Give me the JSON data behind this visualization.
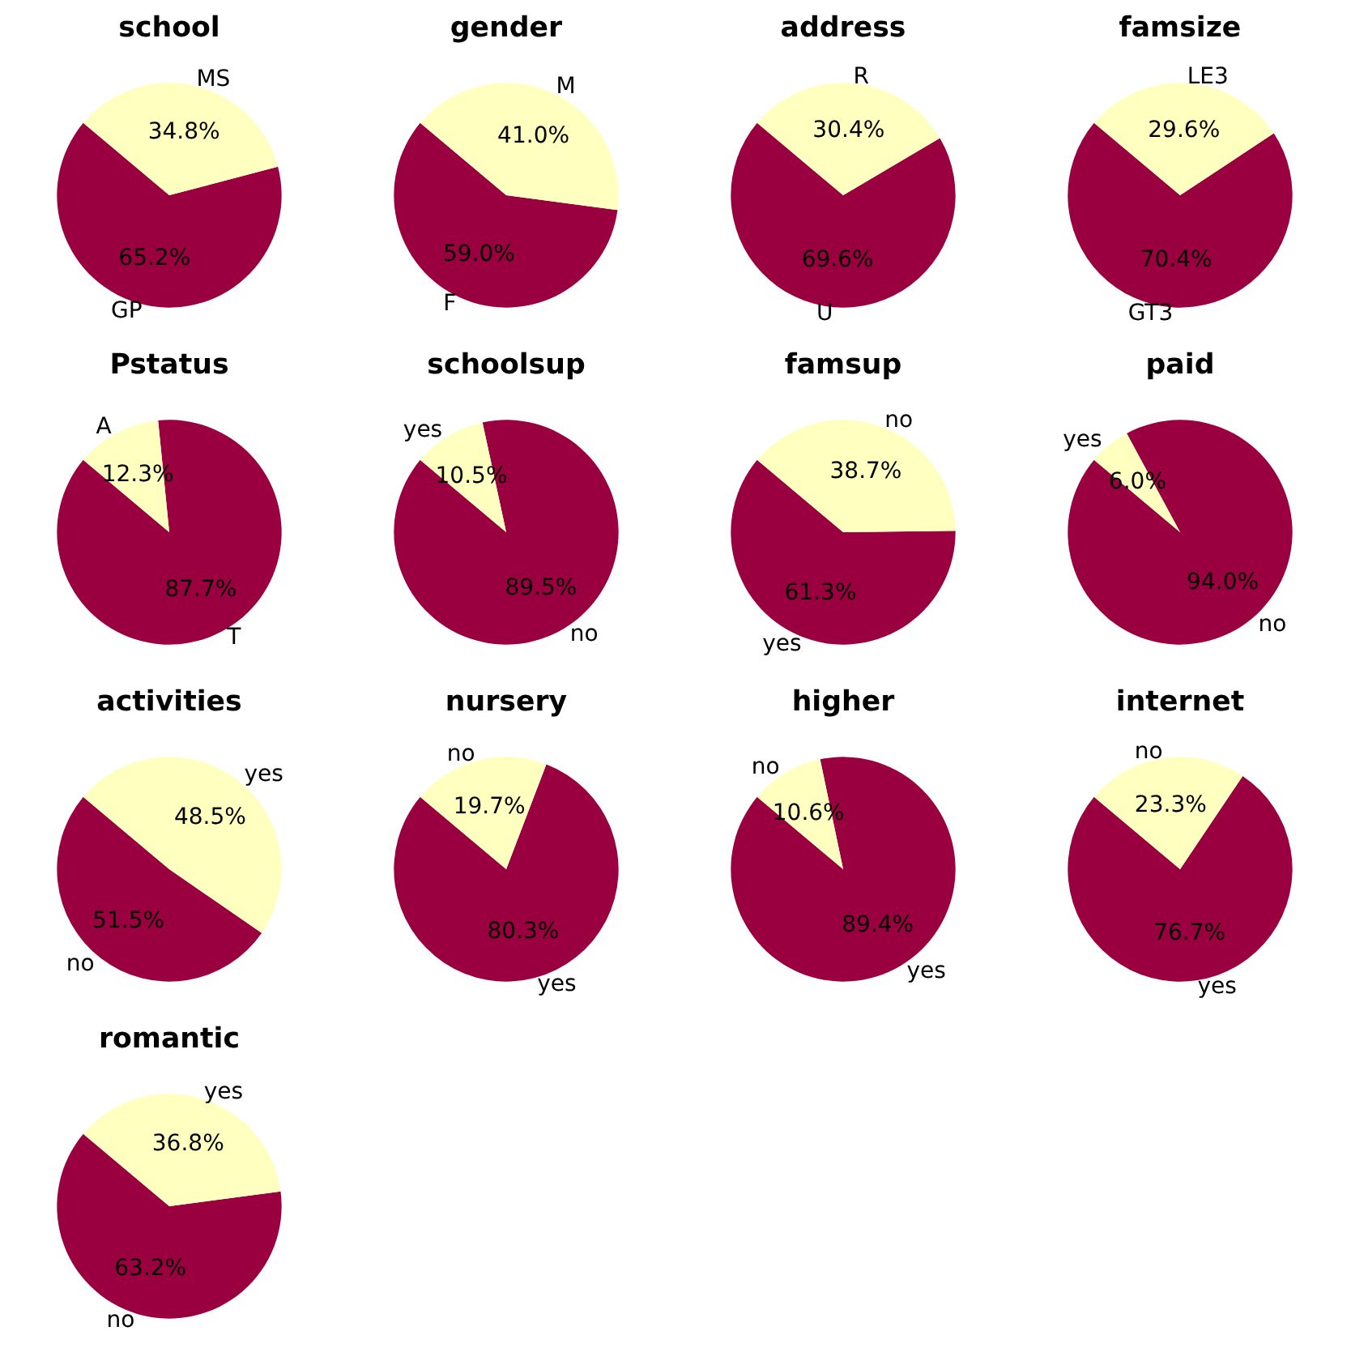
{
  "chart_data": [
    {
      "type": "pie",
      "title": "school",
      "categories": [
        "GP",
        "MS"
      ],
      "values": [
        65.2,
        34.8
      ],
      "value_labels": [
        "65.2%",
        "34.8%"
      ],
      "colors": [
        "#9a0040",
        "#ffffbf"
      ]
    },
    {
      "type": "pie",
      "title": "gender",
      "categories": [
        "F",
        "M"
      ],
      "values": [
        59.0,
        41.0
      ],
      "value_labels": [
        "59.0%",
        "41.0%"
      ],
      "colors": [
        "#9a0040",
        "#ffffbf"
      ]
    },
    {
      "type": "pie",
      "title": "address",
      "categories": [
        "U",
        "R"
      ],
      "values": [
        69.6,
        30.4
      ],
      "value_labels": [
        "69.6%",
        "30.4%"
      ],
      "colors": [
        "#9a0040",
        "#ffffbf"
      ]
    },
    {
      "type": "pie",
      "title": "famsize",
      "categories": [
        "GT3",
        "LE3"
      ],
      "values": [
        70.4,
        29.6
      ],
      "value_labels": [
        "70.4%",
        "29.6%"
      ],
      "colors": [
        "#9a0040",
        "#ffffbf"
      ]
    },
    {
      "type": "pie",
      "title": "Pstatus",
      "categories": [
        "T",
        "A"
      ],
      "values": [
        87.7,
        12.3
      ],
      "value_labels": [
        "87.7%",
        "12.3%"
      ],
      "colors": [
        "#9a0040",
        "#ffffbf"
      ]
    },
    {
      "type": "pie",
      "title": "schoolsup",
      "categories": [
        "no",
        "yes"
      ],
      "values": [
        89.5,
        10.5
      ],
      "value_labels": [
        "89.5%",
        "10.5%"
      ],
      "colors": [
        "#9a0040",
        "#ffffbf"
      ]
    },
    {
      "type": "pie",
      "title": "famsup",
      "categories": [
        "yes",
        "no"
      ],
      "values": [
        61.3,
        38.7
      ],
      "value_labels": [
        "61.3%",
        "38.7%"
      ],
      "colors": [
        "#9a0040",
        "#ffffbf"
      ]
    },
    {
      "type": "pie",
      "title": "paid",
      "categories": [
        "no",
        "yes"
      ],
      "values": [
        94.0,
        6.0
      ],
      "value_labels": [
        "94.0%",
        "6.0%"
      ],
      "colors": [
        "#9a0040",
        "#ffffbf"
      ]
    },
    {
      "type": "pie",
      "title": "activities",
      "categories": [
        "no",
        "yes"
      ],
      "values": [
        51.5,
        48.5
      ],
      "value_labels": [
        "51.5%",
        "48.5%"
      ],
      "colors": [
        "#9a0040",
        "#ffffbf"
      ]
    },
    {
      "type": "pie",
      "title": "nursery",
      "categories": [
        "yes",
        "no"
      ],
      "values": [
        80.3,
        19.7
      ],
      "value_labels": [
        "80.3%",
        "19.7%"
      ],
      "colors": [
        "#9a0040",
        "#ffffbf"
      ]
    },
    {
      "type": "pie",
      "title": "higher",
      "categories": [
        "yes",
        "no"
      ],
      "values": [
        89.4,
        10.6
      ],
      "value_labels": [
        "89.4%",
        "10.6%"
      ],
      "colors": [
        "#9a0040",
        "#ffffbf"
      ]
    },
    {
      "type": "pie",
      "title": "internet",
      "categories": [
        "yes",
        "no"
      ],
      "values": [
        76.7,
        23.3
      ],
      "value_labels": [
        "76.7%",
        "23.3%"
      ],
      "colors": [
        "#9a0040",
        "#ffffbf"
      ]
    },
    {
      "type": "pie",
      "title": "romantic",
      "categories": [
        "no",
        "yes"
      ],
      "values": [
        63.2,
        36.8
      ],
      "value_labels": [
        "63.2%",
        "36.8%"
      ],
      "colors": [
        "#9a0040",
        "#ffffbf"
      ]
    }
  ]
}
